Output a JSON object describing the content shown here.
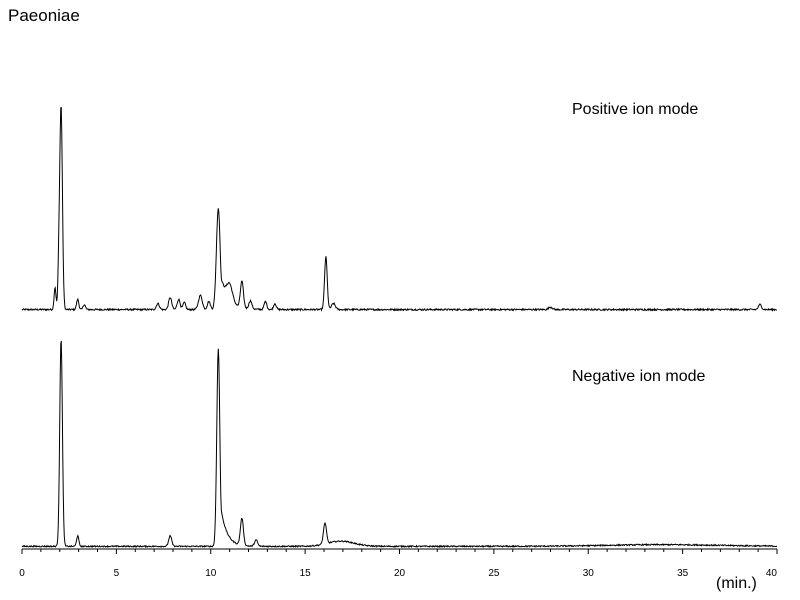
{
  "title": "Paeoniae",
  "chart_data": {
    "type": "line",
    "title": "Paeoniae",
    "xlabel": "(min.)",
    "xlim": [
      0,
      40
    ],
    "x_ticks": [
      0,
      5,
      10,
      15,
      20,
      25,
      30,
      35,
      40
    ],
    "ylim": [
      0,
      1
    ],
    "grid": false,
    "traces": [
      {
        "annotation": "Positive ion mode",
        "baseline": 0.012,
        "noise": 0.004,
        "peaks": [
          {
            "rt": 1.75,
            "height": 0.11,
            "width": 0.05
          },
          {
            "rt": 1.95,
            "height": 0.17,
            "width": 0.05
          },
          {
            "rt": 2.07,
            "height": 1.0,
            "width": 0.07
          },
          {
            "rt": 2.95,
            "height": 0.05,
            "width": 0.06
          },
          {
            "rt": 3.3,
            "height": 0.025,
            "width": 0.06
          },
          {
            "rt": 7.2,
            "height": 0.03,
            "width": 0.08
          },
          {
            "rt": 7.85,
            "height": 0.06,
            "width": 0.08
          },
          {
            "rt": 8.3,
            "height": 0.05,
            "width": 0.08
          },
          {
            "rt": 8.6,
            "height": 0.035,
            "width": 0.07
          },
          {
            "rt": 9.45,
            "height": 0.07,
            "width": 0.1
          },
          {
            "rt": 9.9,
            "height": 0.04,
            "width": 0.08
          },
          {
            "rt": 10.4,
            "height": 0.5,
            "width": 0.1,
            "tail": 0.45
          },
          {
            "rt": 11.0,
            "height": 0.08,
            "width": 0.15
          },
          {
            "rt": 11.65,
            "height": 0.13,
            "width": 0.08
          },
          {
            "rt": 12.1,
            "height": 0.04,
            "width": 0.08
          },
          {
            "rt": 12.9,
            "height": 0.04,
            "width": 0.07
          },
          {
            "rt": 13.4,
            "height": 0.03,
            "width": 0.07
          },
          {
            "rt": 16.1,
            "height": 0.26,
            "width": 0.07
          },
          {
            "rt": 16.5,
            "height": 0.03,
            "width": 0.1
          },
          {
            "rt": 28.0,
            "height": 0.012,
            "width": 0.1
          },
          {
            "rt": 39.1,
            "height": 0.025,
            "width": 0.08
          }
        ]
      },
      {
        "annotation": "Negative ion mode",
        "baseline": 0.008,
        "noise": 0.003,
        "peaks": [
          {
            "rt": 2.07,
            "height": 1.0,
            "width": 0.07
          },
          {
            "rt": 2.95,
            "height": 0.05,
            "width": 0.06
          },
          {
            "rt": 7.85,
            "height": 0.05,
            "width": 0.08
          },
          {
            "rt": 10.4,
            "height": 0.95,
            "width": 0.08,
            "tail": 0.3
          },
          {
            "rt": 11.65,
            "height": 0.13,
            "width": 0.08
          },
          {
            "rt": 12.4,
            "height": 0.03,
            "width": 0.08
          },
          {
            "rt": 16.05,
            "height": 0.1,
            "width": 0.08
          },
          {
            "rt": 16.9,
            "height": 0.025,
            "width": 0.7
          },
          {
            "rt": 34.0,
            "height": 0.008,
            "width": 3.0
          }
        ]
      }
    ]
  }
}
